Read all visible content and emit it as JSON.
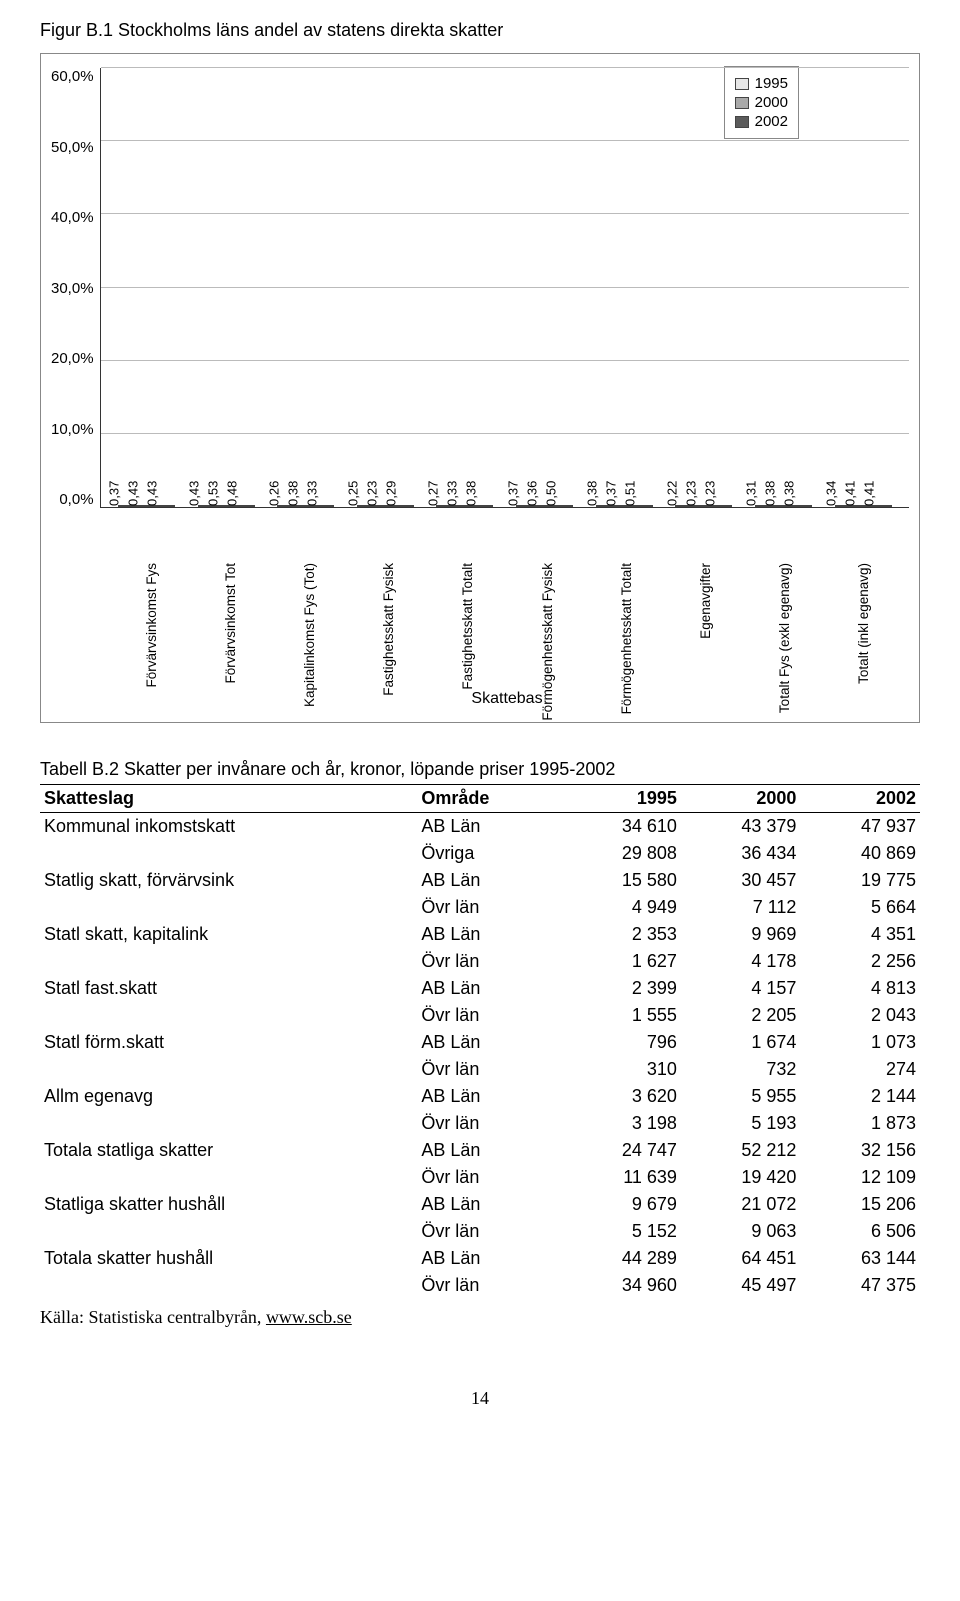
{
  "figure": {
    "title": "Figur B.1  Stockholms läns andel av statens direkta skatter",
    "y_ticks": [
      "60,0%",
      "50,0%",
      "40,0%",
      "30,0%",
      "20,0%",
      "10,0%",
      "0,0%"
    ],
    "y_max": 60,
    "legend": [
      "1995",
      "2000",
      "2002"
    ],
    "colors": [
      "#e6e6e6",
      "#a9a9a9",
      "#5b5b5b"
    ],
    "grid_color": "#bbbbbb",
    "categories": [
      "Förvärvsinkomst Fys",
      "Förvärvsinkomst Tot",
      "Kapitalinkomst Fys (Tot)",
      "Fastighetsskatt Fysisk",
      "Fastighetsskatt Totalt",
      "Förmögenhetsskatt Fysisk",
      "Förmögenhetsskatt Totalt",
      "Egenavgifter",
      "Totalt Fys (exkl egenavg)",
      "Totalt (inkl egenavg)"
    ],
    "x_axis_title": "Skattebas",
    "series": [
      {
        "vals": [
          0.37,
          0.43,
          0.43
        ],
        "labels": [
          "0,37",
          "0,43",
          "0,43"
        ]
      },
      {
        "vals": [
          0.43,
          0.53,
          0.48
        ],
        "labels": [
          "0,43",
          "0,53",
          "0,48"
        ]
      },
      {
        "vals": [
          0.26,
          0.38,
          0.33
        ],
        "labels": [
          "0,26",
          "0,38",
          "0,33"
        ]
      },
      {
        "vals": [
          0.25,
          0.23,
          0.29
        ],
        "labels": [
          "0,25",
          "0,23",
          "0,29"
        ]
      },
      {
        "vals": [
          0.27,
          0.33,
          0.38
        ],
        "labels": [
          "0,27",
          "0,33",
          "0,38"
        ]
      },
      {
        "vals": [
          0.37,
          0.36,
          0.5
        ],
        "labels": [
          "0,37",
          "0,36",
          "0,50"
        ]
      },
      {
        "vals": [
          0.38,
          0.37,
          0.51
        ],
        "labels": [
          "0,38",
          "0,37",
          "0,51"
        ]
      },
      {
        "vals": [
          0.22,
          0.23,
          0.23
        ],
        "labels": [
          "0,22",
          "0,23",
          "0,23"
        ]
      },
      {
        "vals": [
          0.31,
          0.38,
          0.38
        ],
        "labels": [
          "0,31",
          "0,38",
          "0,38"
        ]
      },
      {
        "vals": [
          0.34,
          0.41,
          0.41
        ],
        "labels": [
          "0,34",
          "0,41",
          "0,41"
        ]
      }
    ]
  },
  "table": {
    "title": "Tabell B.2 Skatter per invånare och år, kronor, löpande priser 1995-2002",
    "columns": [
      "Skatteslag",
      "Område",
      "1995",
      "2000",
      "2002"
    ],
    "rows": [
      [
        "Kommunal inkomstskatt",
        "AB Län",
        "34 610",
        "43 379",
        "47 937"
      ],
      [
        "",
        "Övriga",
        "29 808",
        "36 434",
        "40 869"
      ],
      [
        "Statlig skatt, förvärvsink",
        "AB Län",
        "15 580",
        "30 457",
        "19 775"
      ],
      [
        "",
        "Övr län",
        "4 949",
        "7 112",
        "5 664"
      ],
      [
        "Statl skatt, kapitalink",
        "AB Län",
        "2 353",
        "9 969",
        "4 351"
      ],
      [
        "",
        "Övr län",
        "1 627",
        "4 178",
        "2 256"
      ],
      [
        "Statl fast.skatt",
        "AB Län",
        "2 399",
        "4 157",
        "4 813"
      ],
      [
        "",
        "Övr län",
        "1 555",
        "2 205",
        "2 043"
      ],
      [
        "Statl förm.skatt",
        "AB Län",
        "796",
        "1 674",
        "1 073"
      ],
      [
        "",
        "Övr län",
        "310",
        "732",
        "274"
      ],
      [
        "Allm egenavg",
        "AB Län",
        "3 620",
        "5 955",
        "2 144"
      ],
      [
        "",
        "Övr län",
        "3 198",
        "5 193",
        "1 873"
      ],
      [
        "Totala statliga skatter",
        "AB Län",
        "24 747",
        "52 212",
        "32 156"
      ],
      [
        "",
        "Övr län",
        "11 639",
        "19 420",
        "12 109"
      ],
      [
        "Statliga skatter hushåll",
        "AB Län",
        "9 679",
        "21 072",
        "15 206"
      ],
      [
        "",
        "Övr län",
        "5 152",
        "9 063",
        "6 506"
      ],
      [
        "Totala skatter hushåll",
        "AB Län",
        "44 289",
        "64 451",
        "63 144"
      ],
      [
        "",
        "Övr län",
        "34 960",
        "45 497",
        "47 375"
      ]
    ]
  },
  "source": "Källa: Statistiska centralbyrån, ",
  "source_link": "www.scb.se",
  "page_number": "14"
}
